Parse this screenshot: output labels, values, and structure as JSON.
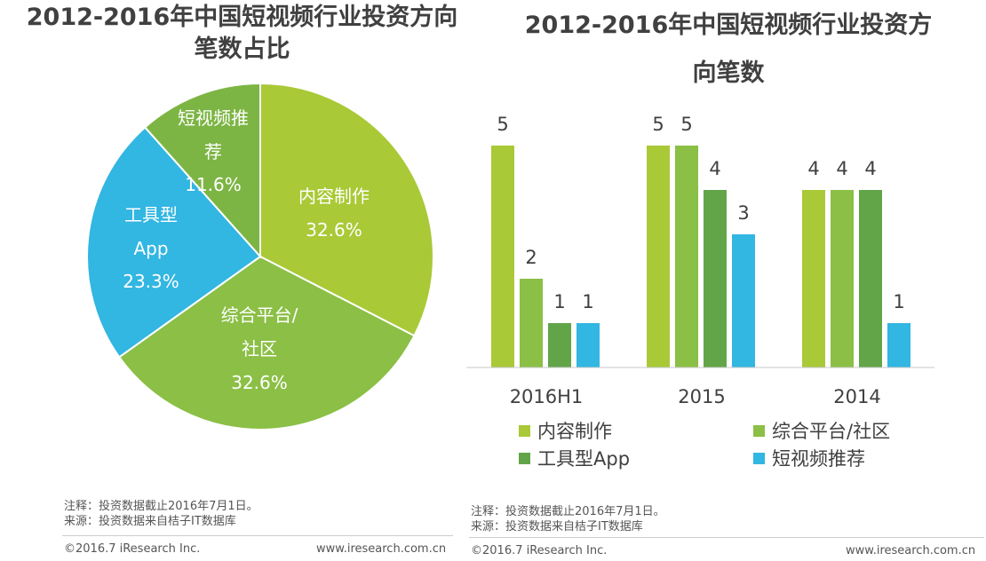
{
  "colors": {
    "lime": "#A9C937",
    "green": "#8BBF45",
    "dark_green": "#62A548",
    "blue": "#32B6E2"
  },
  "pie": {
    "title_line1": "2012-2016年中国短视频行业投资方向",
    "title_line2": "笔数占比",
    "labels": {
      "s1_line1": "内容制作",
      "s1_pct": "32.6%",
      "s2_line1": "综合平台/",
      "s2_line2": "社区",
      "s2_pct": "32.6%",
      "s3_line1": "工具型",
      "s3_line2": "App",
      "s3_pct": "23.3%",
      "s4_line1": "短视频推",
      "s4_line2": "荐",
      "s4_pct": "11.6%"
    },
    "note_line1": "注释：投资数据截止2016年7月1日。",
    "note_line2": "来源：投资数据来自桔子IT数据库",
    "footer_left": "©2016.7 iResearch Inc.",
    "footer_right": "www.iresearch.com.cn"
  },
  "bar": {
    "title_line1": "2012-2016年中国短视频行业投资方",
    "title_line2": "向笔数",
    "note_line1": "注释：投资数据截止2016年7月1日。",
    "note_line2": "来源：投资数据来自桔子IT数据库",
    "footer_left": "©2016.7 iResearch Inc.",
    "footer_right": "www.iresearch.com.cn"
  },
  "chart_data": [
    {
      "type": "pie",
      "title": "2012-2016年中国短视频行业投资方向笔数占比",
      "slices": [
        {
          "label": "内容制作",
          "value": 32.6,
          "color": "#A9C937"
        },
        {
          "label": "综合平台/社区",
          "value": 32.6,
          "color": "#8BBF45"
        },
        {
          "label": "工具型App",
          "value": 23.3,
          "color": "#32B6E2"
        },
        {
          "label": "短视频推荐",
          "value": 11.6,
          "color": "#7DB544"
        }
      ]
    },
    {
      "type": "bar",
      "title": "2012-2016年中国短视频行业投资方向笔数",
      "categories": [
        "2016H1",
        "2015",
        "2014"
      ],
      "series": [
        {
          "name": "内容制作",
          "values": [
            5,
            5,
            4
          ],
          "color": "#A9C937"
        },
        {
          "name": "综合平台/社区",
          "values": [
            2,
            5,
            4
          ],
          "color": "#8BBF45"
        },
        {
          "name": "工具型App",
          "values": [
            1,
            4,
            4
          ],
          "color": "#62A548"
        },
        {
          "name": "短视频推荐",
          "values": [
            1,
            3,
            1
          ],
          "color": "#32B6E2"
        }
      ],
      "ylim": [
        0,
        5
      ]
    }
  ]
}
